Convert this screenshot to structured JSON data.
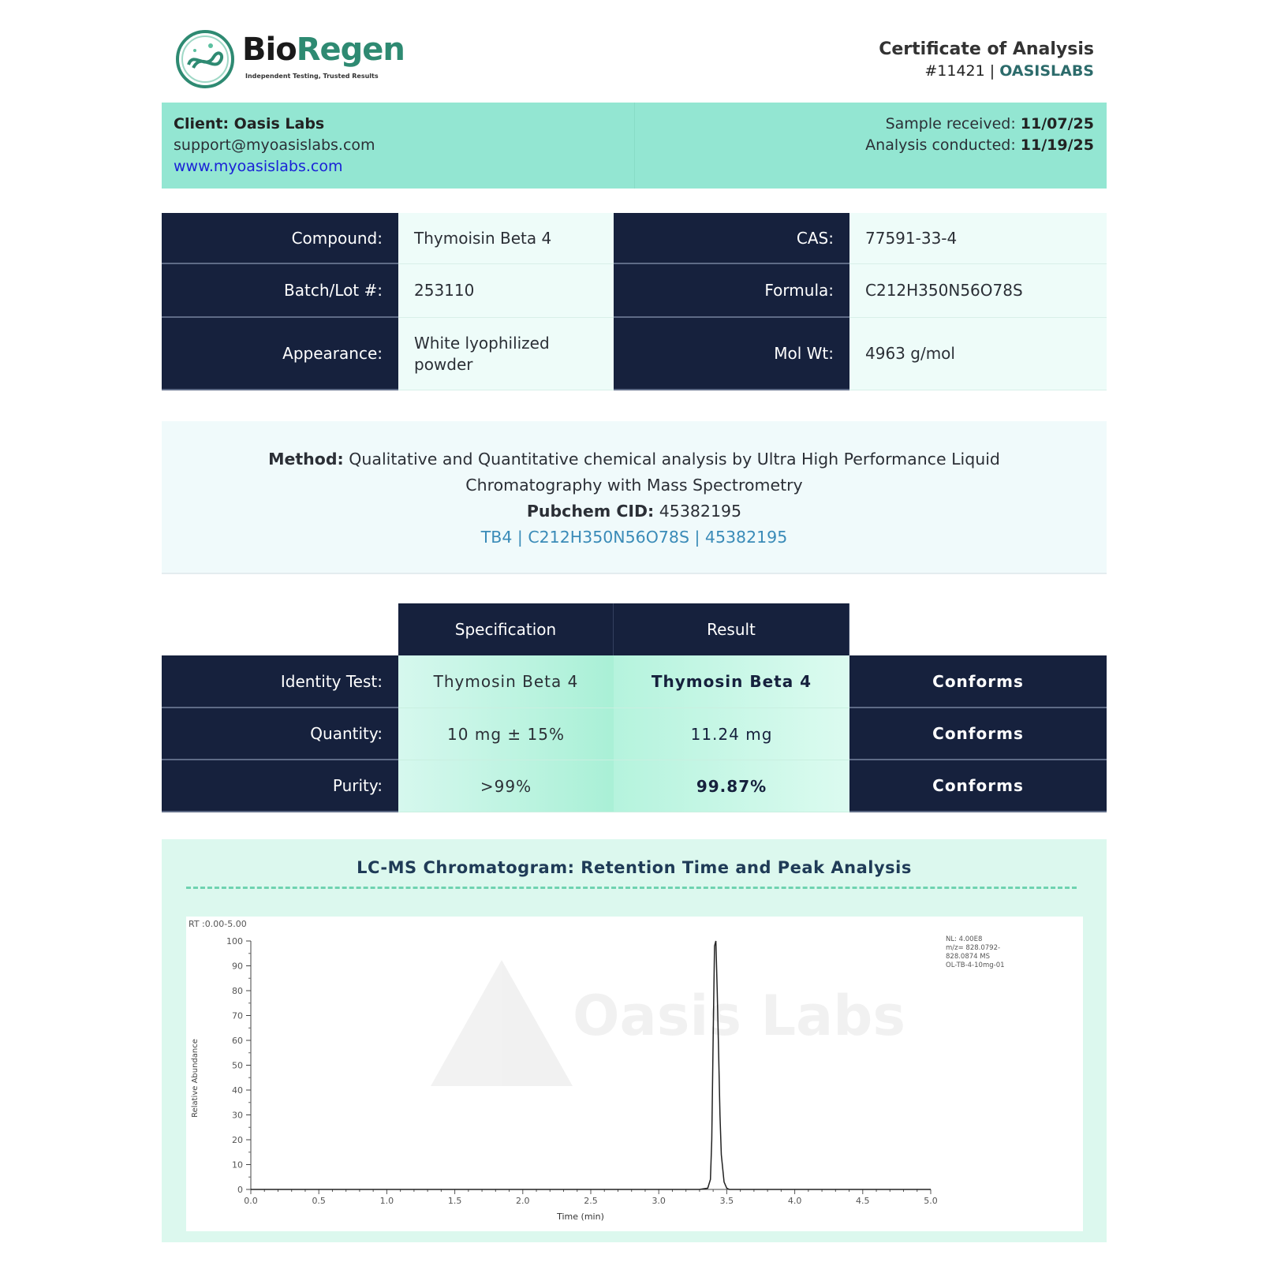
{
  "header": {
    "logo": {
      "brand_part1": "Bio",
      "brand_part2": "Regen",
      "tagline": "Independent Testing, Trusted Results"
    },
    "title": "Certificate of Analysis",
    "number": "#11421",
    "separator": "|",
    "lab": "OASISLABS"
  },
  "client": {
    "name_label": "Client: Oasis Labs",
    "email": "support@myoasislabs.com",
    "website": "www.myoasislabs.com",
    "received_label": "Sample received:",
    "received_date": "11/07/25",
    "analysis_label": "Analysis conducted:",
    "analysis_date": "11/19/25"
  },
  "info": [
    {
      "label": "Compound:",
      "value": "Thymoisin Beta 4",
      "label2": "CAS:",
      "value2": "77591-33-4"
    },
    {
      "label": "Batch/Lot #:",
      "value": "253110",
      "label2": "Formula:",
      "value2": "C212H350N56O78S"
    },
    {
      "label": "Appearance:",
      "value": "White lyophilized powder",
      "label2": "Mol Wt:",
      "value2": "4963 g/mol"
    }
  ],
  "method": {
    "label": "Method:",
    "text": "Qualitative and Quantitative chemical analysis by Ultra High Performance Liquid Chromatography with Mass Spectrometry",
    "pubchem_label": "Pubchem CID:",
    "pubchem_value": "45382195",
    "link": "TB4 | C212H350N56O78S | 45382195"
  },
  "results": {
    "headers": [
      "Specification",
      "Result"
    ],
    "rows": [
      {
        "test": "Identity Test:",
        "spec": "Thymosin Beta 4",
        "result": "Thymosin Beta 4",
        "result_bold": true,
        "status": "Conforms"
      },
      {
        "test": "Quantity:",
        "spec": "10 mg ± 15%",
        "result": "11.24 mg",
        "result_bold": false,
        "status": "Conforms"
      },
      {
        "test": "Purity:",
        "spec": ">99%",
        "result": "99.87%",
        "result_bold": true,
        "status": "Conforms"
      }
    ]
  },
  "chart_panel": {
    "title": "LC-MS Chromatogram: Retention Time and Peak Analysis",
    "watermark": "Oasis Labs"
  },
  "chart_data": {
    "type": "line",
    "range_label": "RT :0.00-5.00",
    "xlabel": "Time (min)",
    "ylabel": "Relative Abundance",
    "xlim": [
      0,
      5
    ],
    "ylim": [
      0,
      100
    ],
    "xticks": [
      "0.0",
      "0.5",
      "1.0",
      "1.5",
      "2.0",
      "2.5",
      "3.0",
      "3.5",
      "4.0",
      "4.5",
      "5.0"
    ],
    "yticks": [
      "0",
      "10",
      "20",
      "30",
      "40",
      "50",
      "60",
      "70",
      "80",
      "90",
      "100"
    ],
    "grid": false,
    "annotation": [
      "NL: 4.00E8",
      "m/z= 828.0792-",
      "828.0874 MS",
      "OL-TB-4-10mg-01"
    ],
    "x": [
      0,
      3.3,
      3.36,
      3.38,
      3.39,
      3.4,
      3.41,
      3.42,
      3.43,
      3.44,
      3.45,
      3.46,
      3.48,
      3.5,
      3.52,
      5.0
    ],
    "y": [
      0,
      0,
      0.5,
      4,
      20,
      62,
      98,
      100,
      80,
      55,
      30,
      14,
      3,
      0.5,
      0,
      0
    ],
    "color": "#222222"
  },
  "colors": {
    "navy": "#16213d",
    "mint": "#93e6d2",
    "brand_green": "#2e8a72",
    "link_blue": "#1a22d6",
    "pubchem_link": "#3a8bb8"
  }
}
